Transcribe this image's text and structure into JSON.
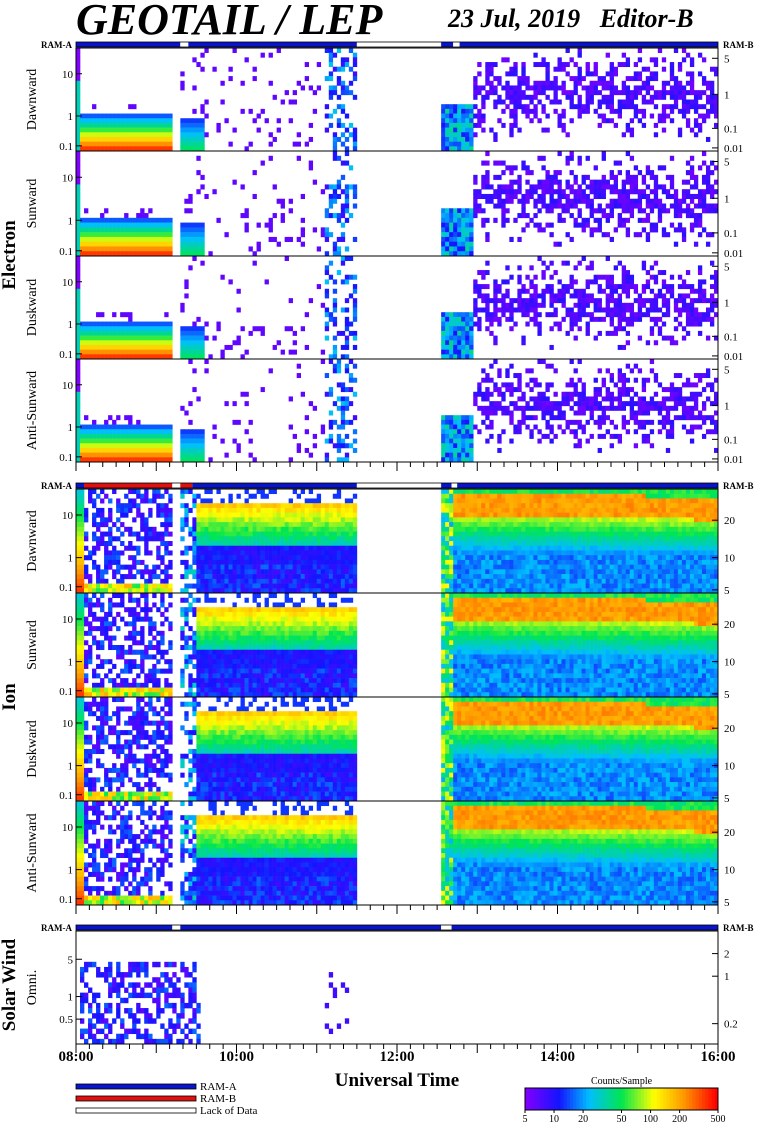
{
  "header": {
    "title": "GEOTAIL / LEP",
    "date": "23 Jul, 2019",
    "editor": "Editor-B"
  },
  "colors": {
    "ram_a": "#0a14c8",
    "ram_b": "#e01010",
    "lack_of_data": "#ffffff",
    "frame": "#000000"
  },
  "chart_data": {
    "type": "heatmap",
    "xlabel": "Universal Time",
    "x_ticks": [
      "08:00",
      "10:00",
      "12:00",
      "14:00",
      "16:00"
    ],
    "x_range_hours": [
      8,
      16
    ],
    "colorbar": {
      "title": "Counts/Sample",
      "ticks": [
        "5",
        "10",
        "20",
        "50",
        "100",
        "200",
        "500"
      ],
      "scale": "log",
      "range": [
        5,
        500
      ]
    },
    "mode_legend": [
      "RAM-A",
      "RAM-B",
      "Lack of Data"
    ],
    "sections": [
      {
        "name": "Electron",
        "mode_labels": [
          "RAM-A",
          "RAM-B"
        ],
        "mode_segments": [
          {
            "mode": "RAM-A",
            "start": 8.0,
            "end": 9.3
          },
          {
            "mode": "none",
            "start": 9.3,
            "end": 9.4
          },
          {
            "mode": "RAM-A",
            "start": 9.4,
            "end": 11.5
          },
          {
            "mode": "none",
            "start": 11.5,
            "end": 12.55
          },
          {
            "mode": "RAM-A",
            "start": 12.55,
            "end": 12.7
          },
          {
            "mode": "none",
            "start": 12.7,
            "end": 12.78
          },
          {
            "mode": "RAM-A",
            "start": 12.78,
            "end": 16.0
          }
        ],
        "left_ticks": [
          "10",
          "1",
          "0.1"
        ],
        "right_ticks": [
          "5",
          "1",
          "0.1",
          "0.01"
        ],
        "panels": [
          "Dawnward",
          "Sunward",
          "Duskward",
          "Anti-Sunward"
        ]
      },
      {
        "name": "Ion",
        "mode_labels": [
          "RAM-A",
          "RAM-B"
        ],
        "mode_segments": [
          {
            "mode": "RAM-A",
            "start": 8.0,
            "end": 8.1
          },
          {
            "mode": "RAM-B",
            "start": 8.1,
            "end": 9.2
          },
          {
            "mode": "none",
            "start": 9.2,
            "end": 9.3
          },
          {
            "mode": "RAM-B",
            "start": 9.3,
            "end": 9.45
          },
          {
            "mode": "RAM-A",
            "start": 9.45,
            "end": 11.5
          },
          {
            "mode": "none",
            "start": 11.5,
            "end": 12.55
          },
          {
            "mode": "RAM-A",
            "start": 12.55,
            "end": 12.68
          },
          {
            "mode": "none",
            "start": 12.68,
            "end": 12.75
          },
          {
            "mode": "RAM-A",
            "start": 12.75,
            "end": 16.0
          }
        ],
        "left_ticks": [
          "10",
          "1",
          "0.1"
        ],
        "right_ticks": [
          "20",
          "10",
          "5"
        ],
        "panels": [
          "Dawnward",
          "Sunward",
          "Duskward",
          "Anti-Sunward"
        ]
      },
      {
        "name": "Solar Wind",
        "mode_labels": [
          "RAM-A",
          "RAM-B"
        ],
        "mode_segments": [
          {
            "mode": "RAM-A",
            "start": 8.0,
            "end": 9.2
          },
          {
            "mode": "none",
            "start": 9.2,
            "end": 9.3
          },
          {
            "mode": "RAM-A",
            "start": 9.3,
            "end": 12.55
          },
          {
            "mode": "none",
            "start": 12.55,
            "end": 12.68
          },
          {
            "mode": "RAM-A",
            "start": 12.68,
            "end": 16.0
          }
        ],
        "left_ticks": [
          "5",
          "1",
          "0.5"
        ],
        "right_ticks": [
          "2",
          "1",
          "0.2"
        ],
        "panels": [
          "Omni."
        ]
      }
    ]
  }
}
